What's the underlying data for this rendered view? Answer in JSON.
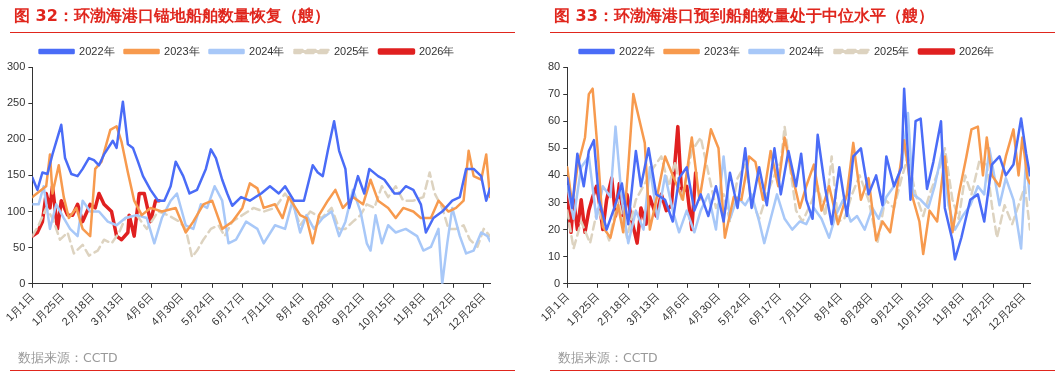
{
  "chart_data": [
    {
      "type": "line",
      "title": "图 32：环渤海港口锚地船舶数量恢复（艘）",
      "annotations": [
        "数据来源：CCTD"
      ],
      "legend": "top",
      "grid": false,
      "marker": "none",
      "xlim": [
        "--01-01",
        "--12-31"
      ],
      "xticks": [
        {
          "value": "--01-01",
          "label": "1月1日"
        },
        {
          "value": "--01-25",
          "label": "1月25日"
        },
        {
          "value": "--02-18",
          "label": "2月18日"
        },
        {
          "value": "--03-13",
          "label": "3月13日"
        },
        {
          "value": "--04-06",
          "label": "4月6日"
        },
        {
          "value": "--04-30",
          "label": "4月30日"
        },
        {
          "value": "--05-24",
          "label": "5月24日"
        },
        {
          "value": "--06-17",
          "label": "6月17日"
        },
        {
          "value": "--07-11",
          "label": "7月11日"
        },
        {
          "value": "--08-04",
          "label": "8月4日"
        },
        {
          "value": "--08-28",
          "label": "8月28日"
        },
        {
          "value": "--09-21",
          "label": "9月21日"
        },
        {
          "value": "--10-15",
          "label": "10月15日"
        },
        {
          "value": "--11-08",
          "label": "11月8日"
        },
        {
          "value": "--12-02",
          "label": "12月2日"
        },
        {
          "value": "--12-26",
          "label": "12月26日"
        }
      ],
      "ylim": [
        0,
        300
      ],
      "yticks": [
        0,
        50,
        100,
        150,
        200,
        250,
        300
      ],
      "series": [
        {
          "name": "2022年",
          "color": "#4a6cf7",
          "line_style": "solid",
          "x": [
            "--01-01",
            "--01-05",
            "--01-09",
            "--01-13",
            "--01-17",
            "--01-24",
            "--01-27",
            "--02-01",
            "--02-06",
            "--02-10",
            "--02-15",
            "--02-19",
            "--02-23",
            "--02-27",
            "--03-06",
            "--03-09",
            "--03-14",
            "--03-18",
            "--03-22",
            "--03-26",
            "--03-30",
            "--04-05",
            "--04-11",
            "--04-16",
            "--04-21",
            "--04-25",
            "--05-01",
            "--05-06",
            "--05-12",
            "--05-19",
            "--05-23",
            "--05-27",
            "--06-01",
            "--06-05",
            "--06-09",
            "--06-16",
            "--06-23",
            "--07-02",
            "--07-09",
            "--07-16",
            "--07-21",
            "--07-28",
            "--08-05",
            "--08-12",
            "--08-16",
            "--08-20",
            "--08-24",
            "--08-29",
            "--09-02",
            "--09-07",
            "--09-10",
            "--09-17",
            "--09-22",
            "--09-26",
            "--10-03",
            "--10-08",
            "--10-16",
            "--10-20",
            "--10-25",
            "--10-31",
            "--11-06",
            "--11-10",
            "--11-16",
            "--11-23",
            "--12-01",
            "--12-07",
            "--12-12",
            "--12-18",
            "--12-24",
            "--12-28",
            "--12-31"
          ],
          "values": [
            147,
            130,
            154,
            152,
            179,
            220,
            174,
            152,
            149,
            159,
            174,
            171,
            164,
            179,
            198,
            188,
            252,
            193,
            188,
            169,
            149,
            130,
            115,
            115,
            135,
            169,
            149,
            125,
            130,
            159,
            186,
            174,
            144,
            125,
            108,
            120,
            115,
            125,
            135,
            125,
            135,
            115,
            115,
            164,
            154,
            149,
            184,
            225,
            184,
            159,
            105,
            149,
            125,
            159,
            149,
            144,
            125,
            125,
            135,
            130,
            110,
            71,
            91,
            100,
            115,
            120,
            159,
            159,
            149,
            115,
            132
          ]
        },
        {
          "name": "2023年",
          "color": "#f79a4e",
          "line_style": "solid",
          "x": [
            "--01-01",
            "--01-06",
            "--01-12",
            "--01-15",
            "--01-17",
            "--01-22",
            "--01-26",
            "--01-30",
            "--02-05",
            "--02-10",
            "--02-16",
            "--02-20",
            "--02-25",
            "--03-04",
            "--03-09",
            "--03-13",
            "--03-18",
            "--03-23",
            "--03-29",
            "--04-05",
            "--04-14",
            "--04-25",
            "--05-03",
            "--05-09",
            "--05-17",
            "--05-24",
            "--06-01",
            "--06-09",
            "--06-17",
            "--06-23",
            "--06-29",
            "--07-04",
            "--07-13",
            "--07-19",
            "--07-24",
            "--08-02",
            "--08-07",
            "--08-12",
            "--08-17",
            "--08-24",
            "--08-30",
            "--09-05",
            "--09-13",
            "--09-21",
            "--09-27",
            "--10-03",
            "--10-11",
            "--10-17",
            "--10-23",
            "--10-31",
            "--11-06",
            "--11-14",
            "--11-20",
            "--11-28",
            "--12-04",
            "--12-10",
            "--12-14",
            "--12-18",
            "--12-24",
            "--12-28",
            "--12-31"
          ],
          "values": [
            120,
            127,
            135,
            179,
            125,
            164,
            120,
            91,
            105,
            76,
            66,
            159,
            169,
            213,
            218,
            196,
            154,
            115,
            95,
            105,
            100,
            105,
            71,
            86,
            110,
            115,
            76,
            86,
            105,
            139,
            132,
            105,
            110,
            91,
            120,
            95,
            91,
            56,
            95,
            115,
            130,
            105,
            120,
            110,
            144,
            115,
            105,
            91,
            105,
            100,
            91,
            91,
            115,
            100,
            105,
            115,
            184,
            149,
            144,
            179,
            120
          ]
        },
        {
          "name": "2024年",
          "color": "#a8c8f8",
          "line_style": "solid",
          "x": [
            "--01-01",
            "--01-06",
            "--01-10",
            "--01-15",
            "--01-20",
            "--01-26",
            "--01-31",
            "--02-06",
            "--02-10",
            "--02-16",
            "--02-23",
            "--03-02",
            "--03-09",
            "--03-16",
            "--03-25",
            "--04-02",
            "--04-08",
            "--04-14",
            "--04-21",
            "--04-26",
            "--05-03",
            "--05-09",
            "--05-15",
            "--05-20",
            "--05-26",
            "--06-01",
            "--06-06",
            "--06-12",
            "--06-20",
            "--06-29",
            "--07-04",
            "--07-13",
            "--07-21",
            "--07-27",
            "--08-02",
            "--08-07",
            "--08-13",
            "--08-20",
            "--08-27",
            "--09-02",
            "--09-07",
            "--09-13",
            "--09-19",
            "--09-24",
            "--09-27",
            "--10-01",
            "--10-06",
            "--10-11",
            "--10-17",
            "--10-25",
            "--11-03",
            "--11-08",
            "--11-14",
            "--11-20",
            "--11-23",
            "--11-27",
            "--12-01",
            "--12-07",
            "--12-12",
            "--12-18",
            "--12-24",
            "--12-29",
            "--12-31"
          ],
          "values": [
            110,
            110,
            135,
            76,
            110,
            91,
            76,
            66,
            115,
            100,
            100,
            86,
            81,
            91,
            95,
            91,
            56,
            91,
            115,
            125,
            81,
            76,
            110,
            105,
            135,
            115,
            56,
            61,
            86,
            76,
            56,
            81,
            76,
            115,
            71,
            95,
            76,
            91,
            100,
            66,
            86,
            130,
            100,
            56,
            46,
            95,
            56,
            81,
            71,
            76,
            66,
            46,
            51,
            76,
            0,
            56,
            105,
            66,
            42,
            46,
            71,
            66,
            59
          ]
        },
        {
          "name": "2025年",
          "color": "#ddd3c0",
          "line_style": "dashed",
          "x": [
            "--01-01",
            "--01-06",
            "--01-12",
            "--01-17",
            "--01-23",
            "--01-29",
            "--02-03",
            "--02-10",
            "--02-15",
            "--02-22",
            "--02-27",
            "--03-05",
            "--03-11",
            "--03-16",
            "--03-25",
            "--04-02",
            "--04-11",
            "--04-19",
            "--04-28",
            "--05-03",
            "--05-08",
            "--05-12",
            "--05-17",
            "--05-23",
            "--05-29",
            "--06-03",
            "--06-09",
            "--06-17",
            "--06-26",
            "--07-04",
            "--07-13",
            "--07-21",
            "--07-27",
            "--08-02",
            "--08-10",
            "--08-19",
            "--08-27",
            "--09-02",
            "--09-07",
            "--09-13",
            "--09-19",
            "--09-24",
            "--09-30",
            "--10-06",
            "--10-11",
            "--10-17",
            "--10-23",
            "--10-31",
            "--11-08",
            "--11-13",
            "--11-17",
            "--11-23",
            "--11-28",
            "--12-04",
            "--12-10",
            "--12-15",
            "--12-21",
            "--12-26",
            "--12-31"
          ],
          "values": [
            66,
            81,
            105,
            91,
            61,
            71,
            42,
            54,
            39,
            46,
            61,
            56,
            71,
            91,
            95,
            76,
            100,
            95,
            86,
            76,
            37,
            46,
            61,
            76,
            81,
            66,
            86,
            95,
            105,
            100,
            105,
            125,
            110,
            81,
            100,
            91,
            105,
            76,
            76,
            86,
            95,
            110,
            105,
            135,
            120,
            135,
            115,
            115,
            120,
            154,
            125,
            105,
            76,
            76,
            81,
            61,
            51,
            76,
            66
          ]
        },
        {
          "name": "2026年",
          "color": "#e02020",
          "line_style": "solid",
          "x": [
            "--01-01",
            "--01-05",
            "--01-09",
            "--01-12",
            "--01-15",
            "--01-17",
            "--01-21",
            "--01-24",
            "--01-29",
            "--02-02",
            "--02-06",
            "--02-10",
            "--02-16",
            "--02-20",
            "--02-23",
            "--02-27",
            "--03-05",
            "--03-09",
            "--03-13",
            "--03-18",
            "--03-19",
            "--03-23",
            "--03-27",
            "--03-31",
            "--04-05",
            "--04-09",
            "--04-12"
          ],
          "values": [
            66,
            71,
            86,
            125,
            105,
            135,
            76,
            115,
            95,
            95,
            110,
            86,
            110,
            105,
            125,
            110,
            100,
            66,
            61,
            71,
            95,
            66,
            125,
            125,
            86,
            115,
            115
          ]
        }
      ]
    },
    {
      "type": "line",
      "title": "图 33：环渤海港口预到船舶数量处于中位水平（艘）",
      "annotations": [
        "数据来源：CCTD"
      ],
      "legend": "top",
      "grid": false,
      "marker": "none",
      "xlim": [
        "--01-01",
        "--12-31"
      ],
      "xticks": [
        {
          "value": "--01-01",
          "label": "1月1日"
        },
        {
          "value": "--01-25",
          "label": "1月25日"
        },
        {
          "value": "--02-18",
          "label": "2月18日"
        },
        {
          "value": "--03-13",
          "label": "3月13日"
        },
        {
          "value": "--04-06",
          "label": "4月6日"
        },
        {
          "value": "--04-30",
          "label": "4月30日"
        },
        {
          "value": "--05-24",
          "label": "5月24日"
        },
        {
          "value": "--06-17",
          "label": "6月17日"
        },
        {
          "value": "--07-11",
          "label": "7月11日"
        },
        {
          "value": "--08-04",
          "label": "8月4日"
        },
        {
          "value": "--08-28",
          "label": "8月28日"
        },
        {
          "value": "--09-21",
          "label": "9月21日"
        },
        {
          "value": "--10-15",
          "label": "10月15日"
        },
        {
          "value": "--11-08",
          "label": "11月8日"
        },
        {
          "value": "--12-02",
          "label": "12月2日"
        },
        {
          "value": "--12-26",
          "label": "12月26日"
        }
      ],
      "ylim": [
        0,
        80
      ],
      "yticks": [
        0,
        10,
        20,
        30,
        40,
        50,
        60,
        70,
        80
      ],
      "series": [
        {
          "name": "2022年",
          "color": "#4a6cf7",
          "line_style": "solid",
          "x": [
            "--01-01",
            "--01-05",
            "--01-09",
            "--01-14",
            "--01-18",
            "--01-22",
            "--01-26",
            "--02-01",
            "--02-07",
            "--02-13",
            "--02-18",
            "--02-24",
            "--02-28",
            "--03-06",
            "--03-12",
            "--03-19",
            "--03-25",
            "--03-30",
            "--04-05",
            "--04-11",
            "--04-16",
            "--04-22",
            "--04-28",
            "--05-04",
            "--05-09",
            "--05-15",
            "--05-21",
            "--05-26",
            "--06-01",
            "--06-07",
            "--06-13",
            "--06-18",
            "--06-24",
            "--06-30",
            "--07-04",
            "--07-08",
            "--07-13",
            "--07-17",
            "--07-23",
            "--07-28",
            "--08-03",
            "--08-09",
            "--08-14",
            "--08-20",
            "--08-26",
            "--09-01",
            "--09-06",
            "--09-09",
            "--09-15",
            "--09-21",
            "--09-23",
            "--09-28",
            "--10-02",
            "--10-06",
            "--10-11",
            "--10-16",
            "--10-22",
            "--10-25",
            "--10-31",
            "--11-02",
            "--11-07",
            "--11-14",
            "--11-20",
            "--11-25",
            "--12-01",
            "--12-07",
            "--12-12",
            "--12-18",
            "--12-24",
            "--12-28",
            "--12-31"
          ],
          "values": [
            39,
            28,
            48,
            36,
            49,
            53,
            31,
            20,
            28,
            37,
            22,
            49,
            36,
            50,
            33,
            31,
            23,
            39,
            43,
            27,
            33,
            25,
            36,
            23,
            41,
            28,
            50,
            28,
            43,
            29,
            50,
            33,
            49,
            36,
            48,
            31,
            24,
            55,
            35,
            22,
            43,
            25,
            47,
            50,
            33,
            40,
            29,
            47,
            36,
            43,
            72,
            31,
            60,
            61,
            35,
            45,
            60,
            28,
            16,
            9,
            17,
            31,
            33,
            23,
            44,
            47,
            40,
            44,
            61,
            48,
            40
          ]
        },
        {
          "name": "2023年",
          "color": "#f79a4e",
          "line_style": "solid",
          "x": [
            "--01-01",
            "--01-05",
            "--01-09",
            "--01-15",
            "--01-18",
            "--01-21",
            "--01-25",
            "--01-29",
            "--02-04",
            "--02-10",
            "--02-14",
            "--02-18",
            "--02-22",
            "--02-27",
            "--03-03",
            "--03-07",
            "--03-13",
            "--03-19",
            "--03-25",
            "--04-02",
            "--04-09",
            "--04-15",
            "--04-24",
            "--04-30",
            "--05-05",
            "--05-12",
            "--05-18",
            "--05-24",
            "--05-29",
            "--06-04",
            "--06-10",
            "--06-16",
            "--06-21",
            "--06-27",
            "--07-03",
            "--07-08",
            "--07-14",
            "--07-20",
            "--07-26",
            "--08-02",
            "--08-09",
            "--08-14",
            "--08-20",
            "--08-26",
            "--09-01",
            "--09-06",
            "--09-12",
            "--09-18",
            "--09-23",
            "--09-29",
            "--10-05",
            "--10-08",
            "--10-13",
            "--10-19",
            "--10-25",
            "--10-31",
            "--11-05",
            "--11-11",
            "--11-15",
            "--11-20",
            "--11-24",
            "--11-27",
            "--12-01",
            "--12-07",
            "--12-12",
            "--12-18",
            "--12-22",
            "--12-25",
            "--12-29",
            "--12-31"
          ],
          "values": [
            43,
            29,
            43,
            54,
            70,
            72,
            49,
            21,
            17,
            29,
            19,
            43,
            70,
            60,
            52,
            20,
            33,
            47,
            40,
            31,
            54,
            31,
            57,
            50,
            17,
            32,
            31,
            47,
            45,
            31,
            49,
            36,
            54,
            40,
            28,
            36,
            44,
            27,
            36,
            22,
            33,
            52,
            31,
            39,
            16,
            23,
            19,
            37,
            53,
            33,
            23,
            11,
            27,
            23,
            47,
            19,
            33,
            47,
            57,
            58,
            40,
            54,
            40,
            36,
            47,
            57,
            40,
            54,
            39,
            37
          ]
        },
        {
          "name": "2024年",
          "color": "#a8c8f8",
          "line_style": "solid",
          "x": [
            "--01-01",
            "--01-06",
            "--01-12",
            "--01-18",
            "--01-24",
            "--01-29",
            "--02-04",
            "--02-08",
            "--02-13",
            "--02-18",
            "--02-24",
            "--03-02",
            "--03-07",
            "--03-13",
            "--03-19",
            "--03-25",
            "--03-30",
            "--04-05",
            "--04-11",
            "--04-16",
            "--04-22",
            "--04-28",
            "--05-04",
            "--05-09",
            "--05-15",
            "--05-21",
            "--05-26",
            "--06-01",
            "--06-05",
            "--06-10",
            "--06-15",
            "--06-21",
            "--06-27",
            "--07-03",
            "--07-08",
            "--07-14",
            "--07-20",
            "--07-26",
            "--07-31",
            "--08-06",
            "--08-12",
            "--08-17",
            "--08-23",
            "--08-29",
            "--09-03",
            "--09-09",
            "--09-15",
            "--09-21",
            "--09-26",
            "--09-30",
            "--10-06",
            "--10-12",
            "--10-17",
            "--10-23",
            "--10-28",
            "--11-02",
            "--11-08",
            "--11-14",
            "--11-20",
            "--11-25",
            "--11-29",
            "--12-07",
            "--12-12",
            "--12-18",
            "--12-24",
            "--12-28",
            "--12-31"
          ],
          "values": [
            36,
            24,
            43,
            47,
            24,
            36,
            32,
            58,
            31,
            15,
            27,
            20,
            43,
            24,
            40,
            27,
            19,
            27,
            19,
            27,
            33,
            20,
            47,
            24,
            32,
            29,
            33,
            23,
            15,
            24,
            33,
            24,
            20,
            23,
            22,
            28,
            24,
            17,
            25,
            31,
            23,
            25,
            20,
            28,
            24,
            32,
            36,
            43,
            63,
            33,
            31,
            28,
            36,
            49,
            29,
            20,
            25,
            29,
            36,
            33,
            50,
            29,
            39,
            31,
            13,
            47,
            31
          ]
        },
        {
          "name": "2025年",
          "color": "#ddd3c0",
          "line_style": "dashed",
          "x": [
            "--01-01",
            "--01-06",
            "--01-12",
            "--01-19",
            "--01-25",
            "--02-03",
            "--02-10",
            "--02-17",
            "--02-24",
            "--03-03",
            "--03-10",
            "--03-16",
            "--03-22",
            "--03-27",
            "--04-01",
            "--04-05",
            "--04-09",
            "--04-16",
            "--04-22",
            "--04-28",
            "--05-04",
            "--05-09",
            "--05-15",
            "--05-21",
            "--05-26",
            "--06-01",
            "--06-07",
            "--06-13",
            "--06-18",
            "--06-21",
            "--06-25",
            "--06-30",
            "--07-05",
            "--07-11",
            "--07-17",
            "--07-23",
            "--07-28",
            "--08-02",
            "--08-07",
            "--08-13",
            "--08-19",
            "--08-26",
            "--09-02",
            "--09-08",
            "--09-15",
            "--09-21",
            "--09-26",
            "--10-02",
            "--10-08",
            "--10-13",
            "--10-21",
            "--10-25",
            "--10-31",
            "--11-05",
            "--11-10",
            "--11-15",
            "--11-21",
            "--11-27",
            "--12-01",
            "--12-05",
            "--12-11",
            "--12-17",
            "--12-22",
            "--12-27",
            "--12-31"
          ],
          "values": [
            27,
            13,
            23,
            15,
            28,
            16,
            31,
            17,
            31,
            37,
            43,
            47,
            36,
            45,
            31,
            40,
            49,
            54,
            41,
            28,
            33,
            23,
            39,
            44,
            31,
            24,
            33,
            40,
            45,
            58,
            44,
            27,
            23,
            29,
            36,
            25,
            47,
            23,
            24,
            33,
            40,
            31,
            15,
            31,
            28,
            39,
            47,
            33,
            25,
            33,
            43,
            50,
            31,
            24,
            40,
            33,
            45,
            44,
            29,
            17,
            29,
            22,
            29,
            36,
            20
          ]
        },
        {
          "name": "2026年",
          "color": "#e02020",
          "line_style": "solid",
          "x": [
            "--01-01",
            "--01-04",
            "--01-06",
            "--01-09",
            "--01-12",
            "--01-15",
            "--01-18",
            "--01-21",
            "--01-24",
            "--01-26",
            "--01-29",
            "--02-01",
            "--02-05",
            "--02-08",
            "--02-11",
            "--02-14",
            "--02-17",
            "--02-21",
            "--02-25",
            "--02-28",
            "--03-04",
            "--03-07",
            "--03-12",
            "--03-16",
            "--03-20",
            "--03-24",
            "--03-29",
            "--04-01",
            "--04-05",
            "--04-09",
            "--04-12"
          ],
          "values": [
            33,
            19,
            31,
            20,
            31,
            19,
            27,
            32,
            36,
            31,
            20,
            31,
            39,
            25,
            37,
            25,
            33,
            23,
            15,
            28,
            22,
            32,
            25,
            33,
            27,
            29,
            58,
            33,
            36,
            20,
            41
          ]
        }
      ]
    }
  ]
}
